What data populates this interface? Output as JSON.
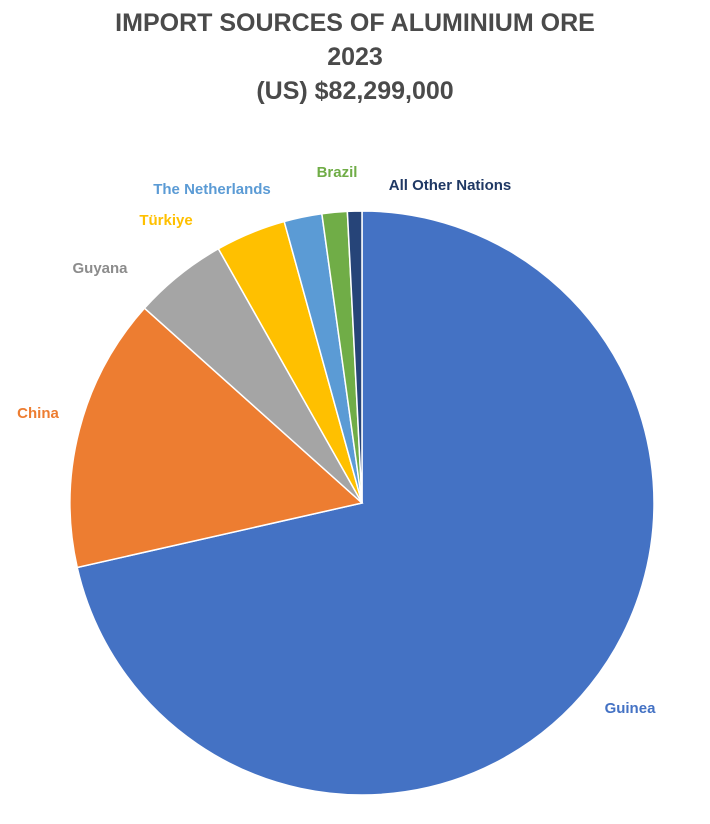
{
  "chart_data": {
    "type": "pie",
    "title": "IMPORT SOURCES OF ALUMINIUM ORE",
    "subtitle_year": "2023",
    "subtitle_total": "(US) $82,299,000",
    "start_angle_deg": 0,
    "direction": "clockwise",
    "slices": [
      {
        "label": "Guinea",
        "value": 71.6,
        "color": "#4472C4",
        "label_color": "#4472C4"
      },
      {
        "label": "China",
        "value": 15.2,
        "color": "#ED7D31",
        "label_color": "#ED7D31"
      },
      {
        "label": "Guyana",
        "value": 5.2,
        "color": "#A5A5A5",
        "label_color": "#8C8C8C"
      },
      {
        "label": "Türkiye",
        "value": 3.9,
        "color": "#FFC000",
        "label_color": "#FFC000"
      },
      {
        "label": "The Netherlands",
        "value": 2.1,
        "color": "#5B9BD5",
        "label_color": "#5B9BD5"
      },
      {
        "label": "Brazil",
        "value": 1.4,
        "color": "#70AD47",
        "label_color": "#70AD47"
      },
      {
        "label": "All Other Nations",
        "value": 0.8,
        "color": "#264478",
        "label_color": "#1F3864"
      }
    ]
  }
}
